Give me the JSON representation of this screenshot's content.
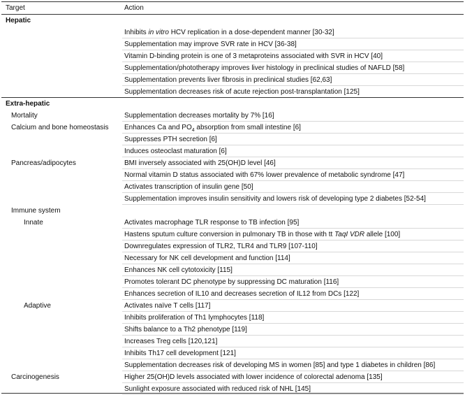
{
  "table": {
    "header": [
      "Target",
      "Action"
    ],
    "rows": [
      {
        "level": 0,
        "target": "Hepatic"
      },
      {
        "action": [
          "Inhibits ",
          {
            "text": "in vitro",
            "italic": true
          },
          " HCV replication in a dose-dependent manner [30-32]"
        ]
      },
      {
        "action": "Supplementation may improve SVR rate in HCV [36-38]"
      },
      {
        "action": "Vitamin D-binding protein is one of 3 metaproteins associated with SVR in HCV [40]"
      },
      {
        "action": "Supplementation/phototherapy improves liver histology in preclinical studies of NAFLD [58]"
      },
      {
        "action": "Supplementation prevents liver fibrosis in preclinical studies [62,63]"
      },
      {
        "action": "Supplementation decreases risk of acute rejection post-transplantation [125]"
      },
      {
        "level": 0,
        "target": "Extra-hepatic",
        "rule": true
      },
      {
        "level": 1,
        "target": "Mortality",
        "action": "Supplementation decreases mortality by 7% [16]"
      },
      {
        "level": 1,
        "target": "Calcium and bone homeostasis",
        "action": [
          "Enhances Ca and PO",
          {
            "text": "4",
            "sub": true
          },
          " absorption from small intestine [6]"
        ]
      },
      {
        "action": "Suppresses PTH secretion [6]"
      },
      {
        "action": "Induces osteoclast maturation [6]"
      },
      {
        "level": 1,
        "target": "Pancreas/adipocytes",
        "action": "BMI inversely associated with 25(OH)D level [46]"
      },
      {
        "action": "Normal vitamin D status associated with 67% lower prevalence of metabolic syndrome [47]"
      },
      {
        "action": "Activates transcription of insulin gene [50]"
      },
      {
        "action": "Supplementation improves insulin sensitivity and lowers risk of developing type 2 diabetes [52-54]"
      },
      {
        "level": 1,
        "target": "Immune system"
      },
      {
        "level": 2,
        "target": "Innate",
        "action": "Activates macrophage TLR response to TB infection [95]"
      },
      {
        "action": [
          "Hastens sputum culture conversion in pulmonary TB in those with tt ",
          {
            "text": "TaqI VDR",
            "italic": true
          },
          " allele [100]"
        ]
      },
      {
        "action": "Downregulates expression of TLR2, TLR4 and TLR9 [107-110]"
      },
      {
        "action": "Necessary for NK cell development and function [114]"
      },
      {
        "action": "Enhances NK cell cytotoxicity [115]"
      },
      {
        "action": "Promotes tolerant DC phenotype by suppressing DC maturation [116]"
      },
      {
        "action": "Enhances secretion of IL10 and decreases secretion of IL12 from DCs [122]"
      },
      {
        "level": 2,
        "target": "Adaptive",
        "action": "Activates naïve T cells [117]"
      },
      {
        "action": "Inhibits proliferation of Th1 lymphocytes [118]"
      },
      {
        "action": "Shifts balance to a Th2 phenotype [119]"
      },
      {
        "action": "Increases Treg cells [120,121]"
      },
      {
        "action": "Inhibits Th17 cell development [121]"
      },
      {
        "action": "Supplementation decreases risk of developing MS in women [85] and type 1 diabetes in children [86]"
      },
      {
        "level": 1,
        "target": "Carcinogenesis",
        "action": "Higher 25(OH)D levels associated with lower incidence of colorectal adenoma [135]"
      },
      {
        "action": "Sunlight exposure associated with reduced risk of NHL [145]"
      }
    ]
  }
}
